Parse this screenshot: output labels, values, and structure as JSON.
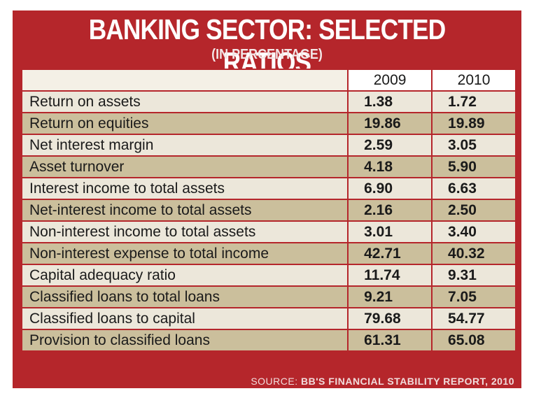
{
  "header": {
    "title": "BANKING SECTOR: SELECTED RATIOS",
    "subtitle": "(IN PERCENTAGE)"
  },
  "table": {
    "columns": [
      "2009",
      "2010"
    ],
    "rows": [
      [
        "Return on assets",
        "1.38",
        "1.72"
      ],
      [
        "Return on equities",
        "19.86",
        "19.89"
      ],
      [
        "Net interest margin",
        "2.59",
        "3.05"
      ],
      [
        "Asset turnover",
        "4.18",
        "5.90"
      ],
      [
        "Interest income to total assets",
        "6.90",
        "6.63"
      ],
      [
        "Net-interest income to total assets",
        "2.16",
        "2.50"
      ],
      [
        "Non-interest income to total assets",
        "3.01",
        "3.40"
      ],
      [
        "Non-interest expense to total income",
        "42.71",
        "40.32"
      ],
      [
        "Capital adequacy ratio",
        "11.74",
        "9.31"
      ],
      [
        "Classified loans to total loans",
        "9.21",
        "7.05"
      ],
      [
        "Classified loans to capital",
        "79.68",
        "54.77"
      ],
      [
        "Provision to classified loans",
        "61.31",
        "65.08"
      ]
    ]
  },
  "source": {
    "label": "SOURCE:",
    "text": "BB'S FINANCIAL STABILITY REPORT, 2010"
  }
}
